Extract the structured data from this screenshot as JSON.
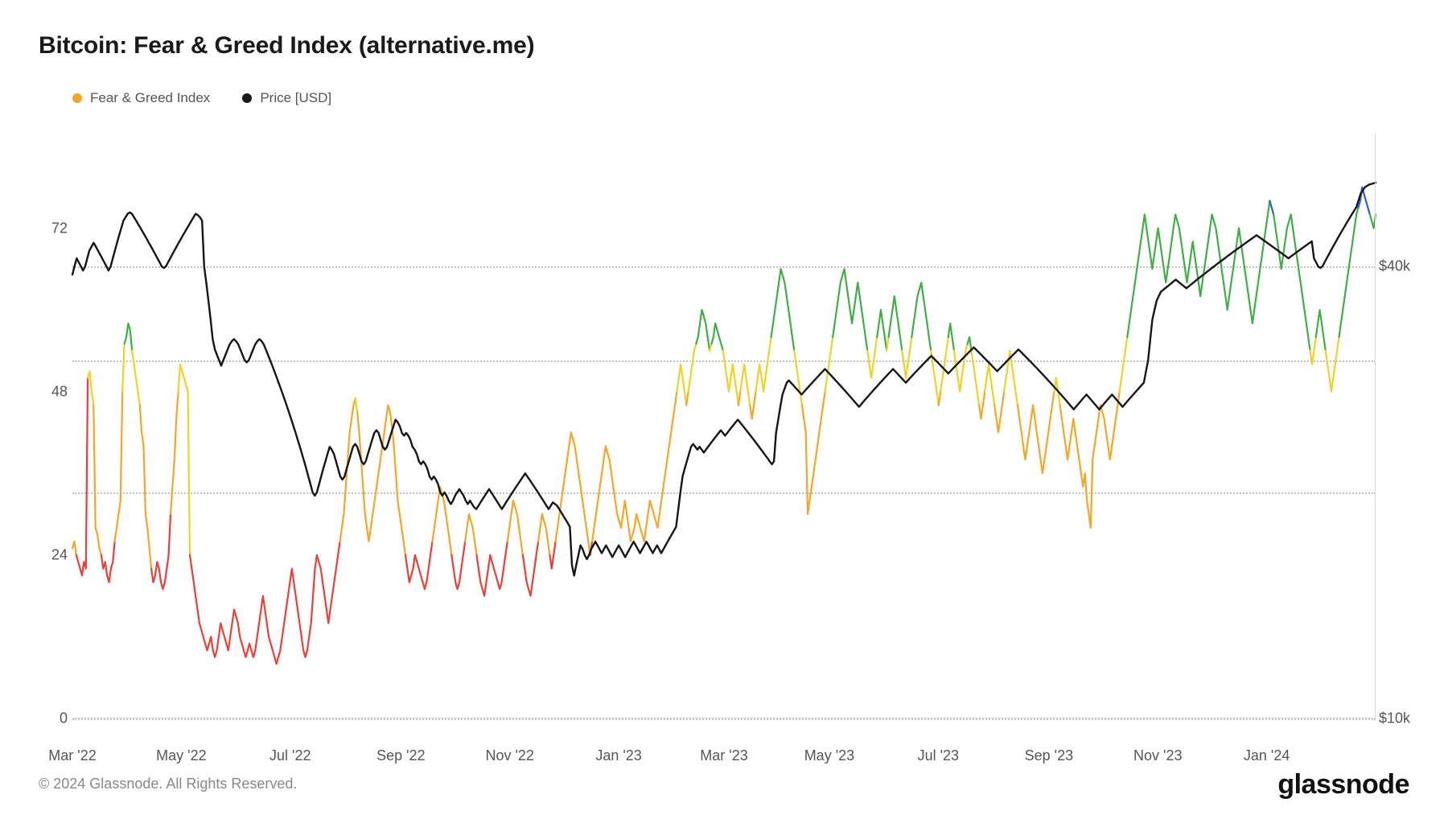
{
  "title": "Bitcoin: Fear & Greed Index (alternative.me)",
  "footer": "© 2024 Glassnode. All Rights Reserved.",
  "brand": "glassnode",
  "legend": {
    "fg_index": {
      "label": "Fear & Greed Index",
      "color": "#f5a623"
    },
    "price": {
      "label": "Price [USD]",
      "color": "#1a1a1a"
    }
  },
  "chart": {
    "type": "line",
    "background_color": "#ffffff",
    "grid_color": "#bdbdbd",
    "border_color": "#d8d8d8",
    "title_fontsize": 30,
    "label_fontsize": 18,
    "legend_fontsize": 17,
    "x": {
      "domain": [
        0,
        730
      ],
      "ticks": [
        0,
        61,
        122,
        184,
        245,
        306,
        365,
        424,
        485,
        547,
        608,
        669
      ],
      "tick_labels": [
        "Mar '22",
        "May '22",
        "Jul '22",
        "Sep '22",
        "Nov '22",
        "Jan '23",
        "Mar '23",
        "May '23",
        "Jul '23",
        "Sep '23",
        "Nov '23",
        "Jan '24"
      ]
    },
    "y_left": {
      "domain": [
        0,
        86
      ],
      "ticks": [
        0,
        24,
        48,
        72
      ],
      "tick_labels": [
        "0",
        "24",
        "48",
        "72"
      ]
    },
    "y_right": {
      "domain_log10": [
        4.0,
        4.78
      ],
      "ticks_value": [
        10000,
        20000,
        30000,
        40000
      ],
      "tick_labels": [
        "$10k",
        "",
        "",
        "$40k"
      ],
      "gridlines_at": [
        10000,
        20000,
        30000,
        40000
      ]
    },
    "fg_thresholds": {
      "extreme_fear_max": 24,
      "fear_max": 46,
      "neutral_max": 54,
      "greed_max": 74
    },
    "colors": {
      "extreme_fear": "#ef3e36",
      "fear": "#f5a623",
      "neutral": "#f2d21f",
      "greed": "#3cb043",
      "extreme_greed": "#2b5ce0",
      "price": "#151515"
    },
    "line_width_fg": 2.2,
    "line_width_price": 2.4,
    "fg_index_series": [
      25,
      26,
      24,
      23,
      22,
      21,
      23,
      22,
      50,
      51,
      48,
      46,
      28,
      27,
      25,
      24,
      22,
      23,
      21,
      20,
      22,
      23,
      26,
      28,
      30,
      32,
      48,
      55,
      56,
      58,
      57,
      54,
      52,
      50,
      48,
      46,
      42,
      40,
      30,
      28,
      25,
      22,
      20,
      21,
      23,
      22,
      20,
      19,
      20,
      22,
      24,
      30,
      34,
      38,
      44,
      48,
      52,
      51,
      50,
      49,
      48,
      24,
      22,
      20,
      18,
      16,
      14,
      13,
      12,
      11,
      10,
      11,
      12,
      10,
      9,
      10,
      12,
      14,
      13,
      12,
      11,
      10,
      12,
      14,
      16,
      15,
      14,
      12,
      11,
      10,
      9,
      10,
      11,
      10,
      9,
      10,
      12,
      14,
      16,
      18,
      16,
      14,
      12,
      11,
      10,
      9,
      8,
      9,
      10,
      12,
      14,
      16,
      18,
      20,
      22,
      20,
      18,
      16,
      14,
      12,
      10,
      9,
      10,
      12,
      14,
      18,
      22,
      24,
      23,
      22,
      20,
      18,
      16,
      14,
      16,
      18,
      20,
      22,
      24,
      26,
      28,
      30,
      34,
      38,
      42,
      44,
      46,
      47,
      45,
      42,
      38,
      34,
      30,
      28,
      26,
      28,
      30,
      32,
      34,
      36,
      38,
      40,
      42,
      44,
      46,
      45,
      43,
      40,
      36,
      32,
      30,
      28,
      26,
      24,
      22,
      20,
      21,
      22,
      24,
      23,
      22,
      21,
      20,
      19,
      20,
      22,
      24,
      26,
      28,
      30,
      32,
      34,
      33,
      32,
      30,
      28,
      26,
      24,
      22,
      20,
      19,
      20,
      22,
      24,
      26,
      28,
      30,
      29,
      28,
      26,
      24,
      22,
      20,
      19,
      18,
      20,
      22,
      24,
      23,
      22,
      21,
      20,
      19,
      20,
      22,
      24,
      26,
      28,
      30,
      32,
      31,
      30,
      28,
      26,
      24,
      22,
      20,
      19,
      18,
      20,
      22,
      24,
      26,
      28,
      30,
      29,
      28,
      26,
      24,
      22,
      24,
      26,
      28,
      30,
      32,
      34,
      36,
      38,
      40,
      42,
      41,
      40,
      38,
      36,
      34,
      32,
      30,
      28,
      26,
      24,
      26,
      28,
      30,
      32,
      34,
      36,
      38,
      40,
      39,
      38,
      36,
      34,
      32,
      30,
      29,
      28,
      30,
      32,
      30,
      28,
      26,
      27,
      28,
      30,
      29,
      28,
      27,
      26,
      28,
      30,
      32,
      31,
      30,
      29,
      28,
      30,
      32,
      34,
      36,
      38,
      40,
      42,
      44,
      46,
      48,
      50,
      52,
      50,
      48,
      46,
      48,
      50,
      52,
      54,
      55,
      56,
      58,
      60,
      59,
      58,
      56,
      54,
      55,
      56,
      58,
      57,
      56,
      55,
      54,
      52,
      50,
      48,
      50,
      52,
      50,
      48,
      46,
      48,
      50,
      52,
      50,
      48,
      46,
      44,
      46,
      48,
      50,
      52,
      50,
      48,
      50,
      52,
      54,
      56,
      58,
      60,
      62,
      64,
      66,
      65,
      64,
      62,
      60,
      58,
      56,
      54,
      52,
      50,
      48,
      46,
      44,
      42,
      30,
      32,
      34,
      36,
      38,
      40,
      42,
      44,
      46,
      48,
      50,
      52,
      54,
      56,
      58,
      60,
      62,
      64,
      65,
      66,
      64,
      62,
      60,
      58,
      60,
      62,
      64,
      62,
      60,
      58,
      56,
      54,
      52,
      50,
      52,
      54,
      56,
      58,
      60,
      58,
      56,
      54,
      56,
      58,
      60,
      62,
      60,
      58,
      56,
      54,
      52,
      50,
      52,
      54,
      56,
      58,
      60,
      62,
      63,
      64,
      62,
      60,
      58,
      56,
      54,
      52,
      50,
      48,
      46,
      48,
      50,
      52,
      54,
      56,
      58,
      56,
      54,
      52,
      50,
      48,
      50,
      52,
      54,
      55,
      56,
      54,
      52,
      50,
      48,
      46,
      44,
      46,
      48,
      50,
      52,
      50,
      48,
      46,
      44,
      42,
      44,
      46,
      48,
      50,
      52,
      54,
      52,
      50,
      48,
      46,
      44,
      42,
      40,
      38,
      40,
      42,
      44,
      46,
      44,
      42,
      40,
      38,
      36,
      38,
      40,
      42,
      44,
      46,
      48,
      50,
      48,
      46,
      44,
      42,
      40,
      38,
      40,
      42,
      44,
      42,
      40,
      38,
      36,
      34,
      36,
      32,
      30,
      28,
      38,
      40,
      42,
      44,
      46,
      45,
      44,
      42,
      40,
      38,
      40,
      42,
      44,
      46,
      48,
      50,
      52,
      54,
      56,
      58,
      60,
      62,
      64,
      66,
      68,
      70,
      72,
      74,
      72,
      70,
      68,
      66,
      68,
      70,
      72,
      70,
      68,
      66,
      64,
      66,
      68,
      70,
      72,
      74,
      73,
      72,
      70,
      68,
      66,
      64,
      66,
      68,
      70,
      68,
      66,
      64,
      62,
      64,
      66,
      68,
      70,
      72,
      74,
      73,
      72,
      70,
      68,
      66,
      64,
      62,
      60,
      62,
      64,
      66,
      68,
      70,
      72,
      70,
      68,
      66,
      64,
      62,
      60,
      58,
      60,
      62,
      64,
      66,
      68,
      70,
      72,
      74,
      76,
      75,
      74,
      72,
      70,
      68,
      66,
      68,
      70,
      72,
      73,
      74,
      72,
      70,
      68,
      66,
      64,
      62,
      60,
      58,
      56,
      54,
      52,
      54,
      56,
      58,
      60,
      58,
      56,
      54,
      52,
      50,
      48,
      50,
      52,
      54,
      56,
      58,
      60,
      62,
      64,
      66,
      68,
      70,
      72,
      74,
      75,
      76,
      78,
      77,
      76,
      75,
      74,
      73,
      72,
      74
    ],
    "price_series_usd": [
      39000,
      40000,
      41000,
      40500,
      40000,
      39500,
      40000,
      41000,
      42000,
      42500,
      43000,
      42500,
      42000,
      41500,
      41000,
      40500,
      40000,
      39500,
      40000,
      41000,
      42000,
      43000,
      44000,
      45000,
      46000,
      46500,
      47000,
      47200,
      47000,
      46500,
      46000,
      45500,
      45000,
      44500,
      44000,
      43500,
      43000,
      42500,
      42000,
      41500,
      41000,
      40500,
      40000,
      39800,
      40000,
      40500,
      41000,
      41500,
      42000,
      42500,
      43000,
      43500,
      44000,
      44500,
      45000,
      45500,
      46000,
      46500,
      47000,
      46800,
      46500,
      46000,
      40000,
      38000,
      36000,
      34000,
      32000,
      31000,
      30500,
      30000,
      29500,
      30000,
      30500,
      31000,
      31500,
      31800,
      32000,
      31800,
      31500,
      31000,
      30500,
      30000,
      29800,
      30000,
      30500,
      31000,
      31500,
      31800,
      32000,
      31800,
      31500,
      31000,
      30500,
      30000,
      29500,
      29000,
      28500,
      28000,
      27500,
      27000,
      26500,
      26000,
      25500,
      25000,
      24500,
      24000,
      23500,
      23000,
      22500,
      22000,
      21500,
      21000,
      20500,
      20000,
      19800,
      20000,
      20500,
      21000,
      21500,
      22000,
      22500,
      23000,
      22800,
      22500,
      22000,
      21500,
      21000,
      20800,
      21000,
      21500,
      22000,
      22500,
      23000,
      23200,
      23000,
      22500,
      22000,
      21800,
      22000,
      22500,
      23000,
      23500,
      24000,
      24200,
      24000,
      23500,
      23000,
      22800,
      23000,
      23500,
      24000,
      24500,
      25000,
      24800,
      24500,
      24000,
      23800,
      24000,
      23800,
      23500,
      23000,
      22800,
      22500,
      22000,
      21800,
      22000,
      21800,
      21500,
      21000,
      20800,
      21000,
      20800,
      20500,
      20000,
      19800,
      20000,
      19800,
      19500,
      19300,
      19500,
      19800,
      20000,
      20200,
      20000,
      19800,
      19500,
      19300,
      19500,
      19300,
      19100,
      19000,
      19200,
      19400,
      19600,
      19800,
      20000,
      20200,
      20000,
      19800,
      19600,
      19400,
      19200,
      19000,
      19200,
      19400,
      19600,
      19800,
      20000,
      20200,
      20400,
      20600,
      20800,
      21000,
      21200,
      21000,
      20800,
      20600,
      20400,
      20200,
      20000,
      19800,
      19600,
      19400,
      19200,
      19000,
      19200,
      19400,
      19300,
      19200,
      19000,
      18800,
      18600,
      18400,
      18200,
      18000,
      16000,
      15500,
      16000,
      16500,
      17000,
      16800,
      16500,
      16300,
      16500,
      16800,
      17000,
      17200,
      17000,
      16800,
      16600,
      16800,
      17000,
      16800,
      16600,
      16400,
      16600,
      16800,
      17000,
      16800,
      16600,
      16400,
      16600,
      16800,
      17000,
      17200,
      17000,
      16800,
      16600,
      16800,
      17000,
      17200,
      17000,
      16800,
      16600,
      16800,
      17000,
      16800,
      16600,
      16800,
      17000,
      17200,
      17400,
      17600,
      17800,
      18000,
      19000,
      20000,
      21000,
      21500,
      22000,
      22500,
      23000,
      23200,
      23000,
      22800,
      23000,
      22800,
      22600,
      22800,
      23000,
      23200,
      23400,
      23600,
      23800,
      24000,
      24200,
      24000,
      23800,
      24000,
      24200,
      24400,
      24600,
      24800,
      25000,
      24800,
      24600,
      24400,
      24200,
      24000,
      23800,
      23600,
      23400,
      23200,
      23000,
      22800,
      22600,
      22400,
      22200,
      22000,
      21800,
      22000,
      24000,
      25000,
      26000,
      27000,
      27500,
      28000,
      28200,
      28000,
      27800,
      27600,
      27400,
      27200,
      27000,
      27200,
      27400,
      27600,
      27800,
      28000,
      28200,
      28400,
      28600,
      28800,
      29000,
      29200,
      29000,
      28800,
      28600,
      28400,
      28200,
      28000,
      27800,
      27600,
      27400,
      27200,
      27000,
      26800,
      26600,
      26400,
      26200,
      26000,
      26200,
      26400,
      26600,
      26800,
      27000,
      27200,
      27400,
      27600,
      27800,
      28000,
      28200,
      28400,
      28600,
      28800,
      29000,
      29200,
      29000,
      28800,
      28600,
      28400,
      28200,
      28000,
      28200,
      28400,
      28600,
      28800,
      29000,
      29200,
      29400,
      29600,
      29800,
      30000,
      30200,
      30400,
      30200,
      30000,
      29800,
      29600,
      29400,
      29200,
      29000,
      28800,
      29000,
      29200,
      29400,
      29600,
      29800,
      30000,
      30200,
      30400,
      30600,
      30800,
      31000,
      31200,
      31000,
      30800,
      30600,
      30400,
      30200,
      30000,
      29800,
      29600,
      29400,
      29200,
      29000,
      29200,
      29400,
      29600,
      29800,
      30000,
      30200,
      30400,
      30600,
      30800,
      31000,
      30800,
      30600,
      30400,
      30200,
      30000,
      29800,
      29600,
      29400,
      29200,
      29000,
      28800,
      28600,
      28400,
      28200,
      28000,
      27800,
      27600,
      27400,
      27200,
      27000,
      26800,
      26600,
      26400,
      26200,
      26000,
      25800,
      26000,
      26200,
      26400,
      26600,
      26800,
      27000,
      26800,
      26600,
      26400,
      26200,
      26000,
      25800,
      26000,
      26200,
      26400,
      26600,
      26800,
      27000,
      26800,
      26600,
      26400,
      26200,
      26000,
      26200,
      26400,
      26600,
      26800,
      27000,
      27200,
      27400,
      27600,
      27800,
      28000,
      29000,
      30000,
      32000,
      34000,
      35000,
      36000,
      36500,
      37000,
      37200,
      37400,
      37600,
      37800,
      38000,
      38200,
      38400,
      38200,
      38000,
      37800,
      37600,
      37400,
      37600,
      37800,
      38000,
      38200,
      38400,
      38600,
      38800,
      39000,
      39200,
      39400,
      39600,
      39800,
      40000,
      40200,
      40400,
      40600,
      40800,
      41000,
      41200,
      41400,
      41600,
      41800,
      42000,
      42200,
      42400,
      42600,
      42800,
      43000,
      43200,
      43400,
      43600,
      43800,
      44000,
      43800,
      43600,
      43400,
      43200,
      43000,
      42800,
      42600,
      42400,
      42200,
      42000,
      41800,
      41600,
      41400,
      41200,
      41000,
      41200,
      41400,
      41600,
      41800,
      42000,
      42200,
      42400,
      42600,
      42800,
      43000,
      43200,
      41000,
      40500,
      40000,
      39800,
      40000,
      40500,
      41000,
      41500,
      42000,
      42500,
      43000,
      43500,
      44000,
      44500,
      45000,
      45500,
      46000,
      46500,
      47000,
      47500,
      48000,
      49000,
      50000,
      50500,
      51000,
      51200,
      51400,
      51500,
      51600,
      51700
    ]
  }
}
